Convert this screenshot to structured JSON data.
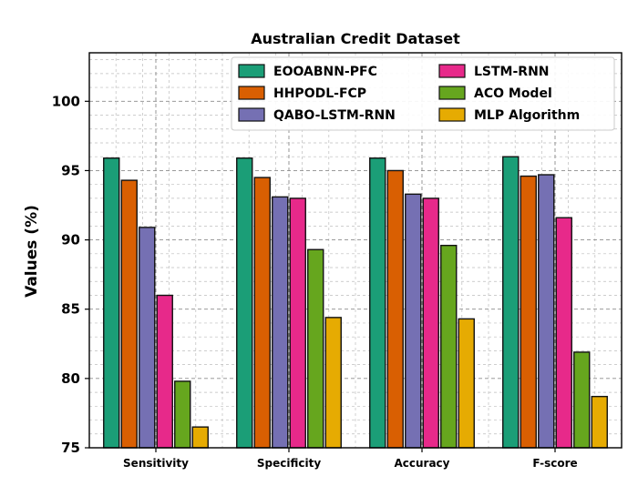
{
  "chart_data": {
    "type": "bar",
    "title": "Australian Credit Dataset",
    "xlabel": "",
    "ylabel": "Values (%)",
    "ylim": [
      75,
      103.5
    ],
    "yticks": [
      75,
      80,
      85,
      90,
      95,
      100
    ],
    "grid": true,
    "legend_position": "top-right",
    "categories": [
      "Sensitivity",
      "Specificity",
      "Accuracy",
      "F-score"
    ],
    "series": [
      {
        "name": "EOOABNN-PFC",
        "color": "#1b9e77",
        "values": [
          95.9,
          95.9,
          95.9,
          96.0
        ]
      },
      {
        "name": "HHPODL-FCP",
        "color": "#d95f02",
        "values": [
          94.3,
          94.5,
          95.0,
          94.6
        ]
      },
      {
        "name": "QABO-LSTM-RNN",
        "color": "#7570b3",
        "values": [
          90.9,
          93.1,
          93.3,
          94.7
        ]
      },
      {
        "name": "LSTM-RNN",
        "color": "#e7298a",
        "values": [
          86.0,
          93.0,
          93.0,
          91.6
        ]
      },
      {
        "name": "ACO Model",
        "color": "#66a61e",
        "values": [
          79.8,
          89.3,
          89.6,
          81.9
        ]
      },
      {
        "name": "MLP Algorithm",
        "color": "#e6ab02",
        "values": [
          76.5,
          84.4,
          84.3,
          78.7
        ]
      }
    ]
  }
}
